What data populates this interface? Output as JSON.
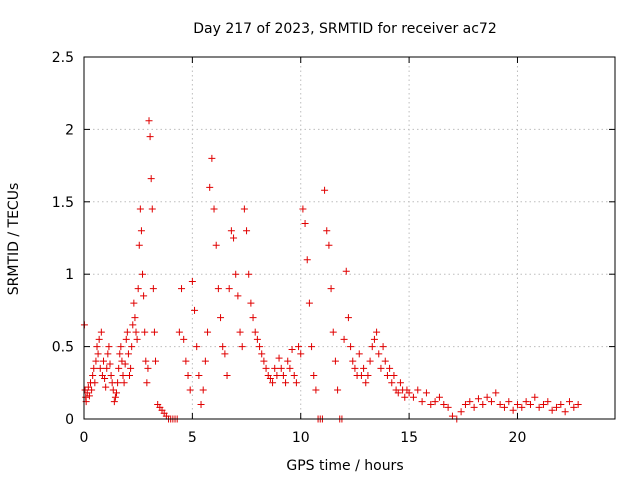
{
  "chart_data": {
    "type": "scatter",
    "title": "Day 217 of 2023, SRMTID for receiver ac72",
    "xlabel": "GPS time / hours",
    "ylabel": "SRMTID / TECUs",
    "xlim": [
      0,
      24.5
    ],
    "ylim": [
      0,
      2.5
    ],
    "xticks": [
      0,
      5,
      10,
      15,
      20
    ],
    "xtick_labels": [
      "0",
      "5",
      "10",
      "15",
      "20"
    ],
    "yticks": [
      0,
      0.5,
      1,
      1.5,
      2,
      2.5
    ],
    "ytick_labels": [
      "0",
      "0.5",
      "1",
      "1.5",
      "2",
      "2.5"
    ],
    "grid": true,
    "marker": "+",
    "series": [
      {
        "name": "SRMTID",
        "color": "#e00000",
        "x": [
          0.02,
          0.05,
          0.08,
          0.1,
          0.15,
          0.2,
          0.25,
          0.3,
          0.35,
          0.4,
          0.45,
          0.5,
          0.55,
          0.6,
          0.65,
          0.7,
          0.75,
          0.8,
          0.85,
          0.9,
          0.95,
          1.0,
          1.05,
          1.1,
          1.15,
          1.2,
          1.25,
          1.3,
          1.35,
          1.4,
          1.45,
          1.5,
          1.55,
          1.6,
          1.65,
          1.7,
          1.75,
          1.8,
          1.85,
          1.9,
          1.95,
          2.0,
          2.05,
          2.1,
          2.15,
          2.2,
          2.25,
          2.3,
          2.35,
          2.4,
          2.45,
          2.5,
          2.55,
          2.6,
          2.65,
          2.7,
          2.75,
          2.8,
          2.85,
          2.9,
          2.95,
          3.0,
          3.05,
          3.1,
          3.15,
          3.2,
          3.25,
          3.3,
          3.4,
          3.5,
          3.6,
          3.7,
          3.8,
          3.9,
          4.0,
          4.1,
          4.2,
          4.3,
          4.4,
          4.5,
          4.6,
          4.7,
          4.8,
          4.9,
          5.0,
          5.1,
          5.2,
          5.3,
          5.4,
          5.5,
          5.6,
          5.7,
          5.8,
          5.9,
          6.0,
          6.1,
          6.2,
          6.3,
          6.4,
          6.5,
          6.6,
          6.7,
          6.8,
          6.9,
          7.0,
          7.1,
          7.2,
          7.3,
          7.4,
          7.5,
          7.6,
          7.7,
          7.8,
          7.9,
          8.0,
          8.1,
          8.2,
          8.3,
          8.4,
          8.5,
          8.6,
          8.7,
          8.8,
          8.9,
          9.0,
          9.1,
          9.2,
          9.3,
          9.4,
          9.5,
          9.6,
          9.7,
          9.8,
          9.9,
          10.0,
          10.1,
          10.2,
          10.3,
          10.4,
          10.5,
          10.6,
          10.7,
          10.8,
          10.9,
          11.0,
          11.1,
          11.2,
          11.3,
          11.4,
          11.5,
          11.6,
          11.7,
          11.8,
          11.9,
          12.0,
          12.1,
          12.2,
          12.3,
          12.4,
          12.5,
          12.6,
          12.7,
          12.8,
          12.9,
          13.0,
          13.1,
          13.2,
          13.3,
          13.4,
          13.5,
          13.6,
          13.7,
          13.8,
          13.9,
          14.0,
          14.1,
          14.2,
          14.3,
          14.4,
          14.5,
          14.6,
          14.7,
          14.8,
          14.9,
          15.0,
          15.2,
          15.4,
          15.6,
          15.8,
          16.0,
          16.2,
          16.4,
          16.6,
          16.8,
          17.0,
          17.2,
          17.4,
          17.6,
          17.8,
          18.0,
          18.2,
          18.4,
          18.6,
          18.8,
          19.0,
          19.2,
          19.4,
          19.6,
          19.8,
          20.0,
          20.2,
          20.4,
          20.6,
          20.8,
          21.0,
          21.2,
          21.4,
          21.6,
          21.8,
          22.0,
          22.2,
          22.4,
          22.6,
          22.8
        ],
        "y": [
          0.65,
          0.2,
          0.15,
          0.12,
          0.18,
          0.22,
          0.16,
          0.25,
          0.2,
          0.3,
          0.35,
          0.25,
          0.4,
          0.5,
          0.45,
          0.55,
          0.35,
          0.6,
          0.3,
          0.4,
          0.28,
          0.22,
          0.35,
          0.45,
          0.5,
          0.38,
          0.3,
          0.25,
          0.2,
          0.12,
          0.15,
          0.18,
          0.25,
          0.35,
          0.45,
          0.5,
          0.4,
          0.3,
          0.25,
          0.38,
          0.55,
          0.6,
          0.45,
          0.3,
          0.35,
          0.5,
          0.65,
          0.8,
          0.7,
          0.6,
          0.55,
          0.9,
          1.2,
          1.45,
          1.3,
          1.0,
          0.85,
          0.6,
          0.4,
          0.25,
          0.35,
          2.06,
          1.95,
          1.66,
          1.45,
          0.9,
          0.6,
          0.4,
          0.1,
          0.08,
          0.06,
          0.04,
          0.02,
          0.0,
          0.0,
          0.0,
          0.0,
          0.0,
          0.6,
          0.9,
          0.55,
          0.4,
          0.3,
          0.2,
          0.95,
          0.75,
          0.5,
          0.3,
          0.1,
          0.2,
          0.4,
          0.6,
          1.6,
          1.8,
          1.45,
          1.2,
          0.9,
          0.7,
          0.5,
          0.45,
          0.3,
          0.9,
          1.3,
          1.25,
          1.0,
          0.85,
          0.6,
          0.5,
          1.45,
          1.3,
          1.0,
          0.8,
          0.7,
          0.6,
          0.55,
          0.5,
          0.45,
          0.4,
          0.35,
          0.3,
          0.28,
          0.25,
          0.35,
          0.3,
          0.42,
          0.35,
          0.3,
          0.25,
          0.4,
          0.35,
          0.48,
          0.3,
          0.25,
          0.5,
          0.45,
          1.45,
          1.35,
          1.1,
          0.8,
          0.5,
          0.3,
          0.2,
          0.0,
          0.0,
          0.0,
          1.58,
          1.3,
          1.2,
          0.9,
          0.6,
          0.4,
          0.2,
          0.0,
          0.0,
          0.55,
          1.02,
          0.7,
          0.5,
          0.4,
          0.35,
          0.3,
          0.45,
          0.3,
          0.35,
          0.25,
          0.3,
          0.4,
          0.5,
          0.55,
          0.6,
          0.45,
          0.35,
          0.5,
          0.4,
          0.3,
          0.35,
          0.25,
          0.3,
          0.2,
          0.18,
          0.25,
          0.2,
          0.15,
          0.2,
          0.18,
          0.15,
          0.2,
          0.12,
          0.18,
          0.1,
          0.12,
          0.15,
          0.1,
          0.08,
          0.02,
          0.0,
          0.05,
          0.1,
          0.12,
          0.08,
          0.14,
          0.1,
          0.15,
          0.12,
          0.18,
          0.1,
          0.08,
          0.12,
          0.06,
          0.1,
          0.08,
          0.12,
          0.1,
          0.15,
          0.08,
          0.1,
          0.12,
          0.06,
          0.08,
          0.1,
          0.05,
          0.12,
          0.08,
          0.1
        ]
      }
    ]
  }
}
